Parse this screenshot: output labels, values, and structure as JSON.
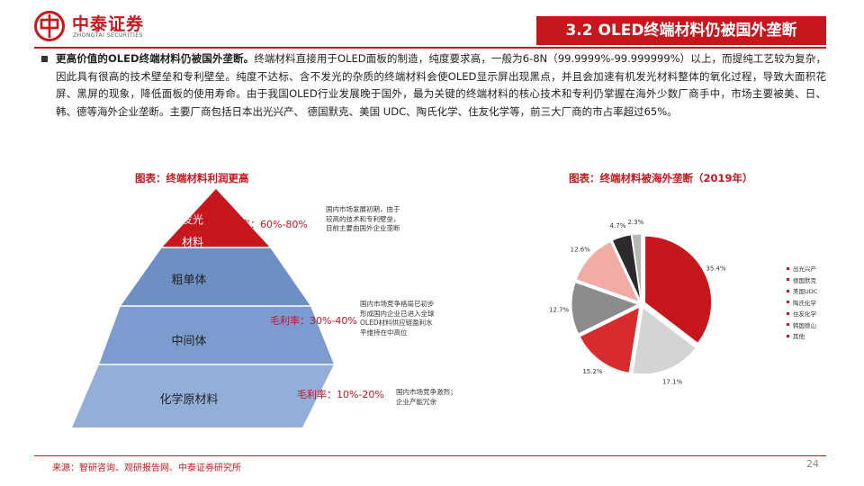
{
  "header": {
    "logo_cn": "中泰证券",
    "logo_en": "ZHONGTAI SECURITIES",
    "section_title": "3.2 OLED终端材料仍被国外垄断"
  },
  "paragraph": {
    "lead": "更高价值的OLED终端材料仍被国外垄断。",
    "body": "终端材料直接用于OLED面板的制造，纯度要求高，一般为6-8N（99.9999%-99.999999%）以上，而提纯工艺较为复杂，因此具有很高的技术壁垒和专利壁垒。纯度不达标、含不发光的杂质的终端材料会使OLED显示屏出现黑点，并且会加速有机发光材料整体的氧化过程，导致大面积花屏、黑屏的现象，降低面板的使用寿命。由于我国OLED行业发展晚于国外，最为关键的终端材料的核心技术和专利仍掌握在海外少数厂商手中，市场主要被美、日、韩、德等海外企业垄断。主要厂商包括日本出光兴产、 德国默克、美国 UDC、陶氏化学、住友化学等，前三大厂商的市占率超过65%。"
  },
  "left_chart": {
    "caption": "图表：终端材料利润更高",
    "tiers": [
      {
        "label_line1": "发光",
        "label_line2": "材料",
        "margin_prefix": "毛利率：",
        "margin_value": "60%-80%",
        "note": [
          "国内市场发展初期，由于",
          "较高的技术和专利壁垒，",
          "目前主要由国外企业垄断"
        ]
      },
      {
        "label": "粗单体"
      },
      {
        "label": "中间体",
        "margin_prefix": "毛利率：",
        "margin_value": "30%-40%",
        "note": [
          "国内市场竞争格局已初步",
          "形成国内企业已进入全球",
          "OLED材料供应链盈利水",
          "平维持在中高位"
        ]
      },
      {
        "label": "化学原材料",
        "margin_prefix": "毛利率：",
        "margin_value": "10%-20%",
        "note": [
          "国内市场竞争激烈；",
          "企业产能冗余"
        ]
      }
    ],
    "colors": {
      "top": "#c8161d",
      "mid": "#6e8fc4",
      "base": "#93afd9"
    }
  },
  "right_chart": {
    "caption": "图表：终端材料被海外垄断（2019年）"
  },
  "chart_data": {
    "type": "pie",
    "title": "",
    "labels": [
      "出光兴产",
      "德国默克",
      "美国UDC",
      "陶氏化学",
      "住友化学",
      "韩国德山",
      "其他"
    ],
    "values": [
      35.4,
      17.1,
      15.2,
      12.7,
      12.6,
      4.7,
      2.3
    ],
    "value_labels": [
      "35.4%",
      "17.1%",
      "15.2%",
      "12.7%",
      "12.6%",
      "4.7%",
      "2.3%"
    ],
    "colors": [
      "#c8161d",
      "#d4d4d4",
      "#d92b2b",
      "#8c8c8c",
      "#f2aca6",
      "#2b2b2b",
      "#b8b8b8"
    ],
    "legend_position": "right"
  },
  "footer": {
    "source": "来源：智研咨询、观研报告网、中泰证券研究所",
    "page_number": "24"
  }
}
